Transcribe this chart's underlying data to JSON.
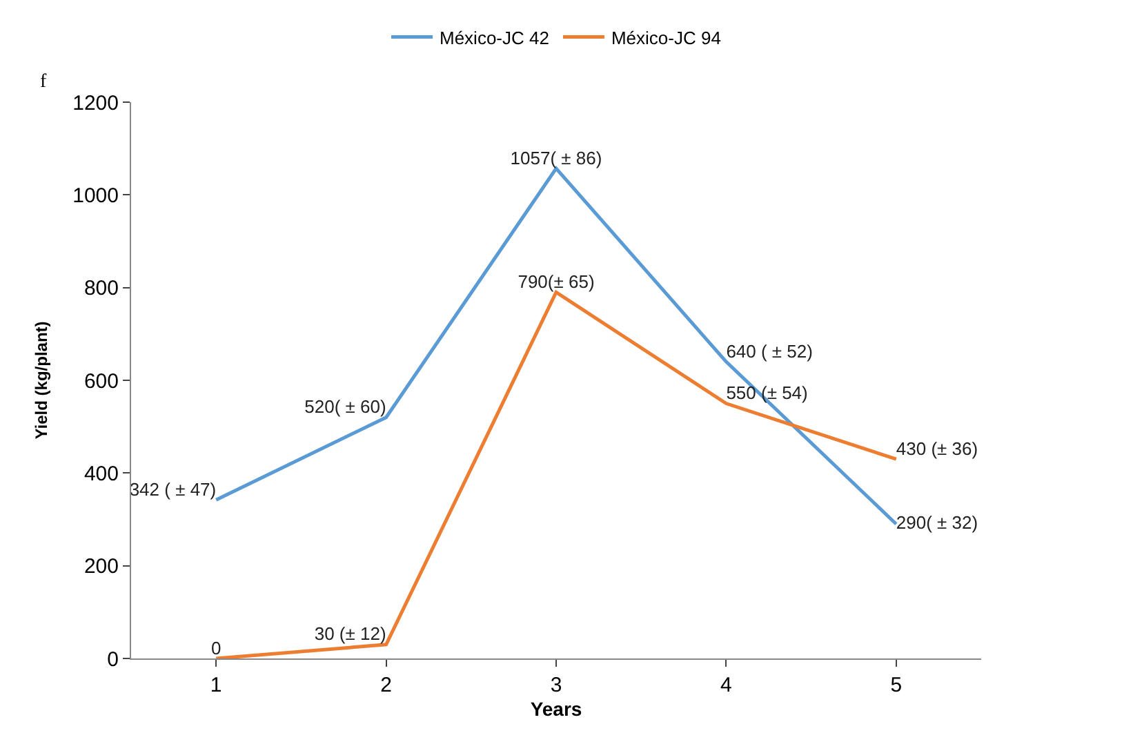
{
  "chart_data": {
    "type": "line",
    "xlabel": "Years",
    "ylabel": "Yield (kg/plant)",
    "annotations": [
      "f"
    ],
    "categories": [
      "1",
      "2",
      "3",
      "4",
      "5"
    ],
    "series": [
      {
        "name": "México-JC 42",
        "color": "#5b9bd5",
        "values": [
          342,
          520,
          1057,
          640,
          290
        ],
        "value_labels": [
          "342 ( ± 47)",
          "520( ± 60)",
          "1057( ± 86)",
          "640 ( ± 52)",
          "290( ± 32)"
        ]
      },
      {
        "name": "México-JC 94",
        "color": "#ed7d31",
        "values": [
          0,
          30,
          790,
          550,
          430
        ],
        "value_labels": [
          "0",
          "30 (± 12)",
          "790(± 65)",
          "550 (± 54)",
          "430 (± 36)"
        ]
      }
    ],
    "ylim": [
      0,
      1200
    ],
    "yticks": [
      0,
      200,
      400,
      600,
      800,
      1000,
      1200
    ],
    "legend": "top",
    "marker": "none",
    "line_style": "solid"
  }
}
